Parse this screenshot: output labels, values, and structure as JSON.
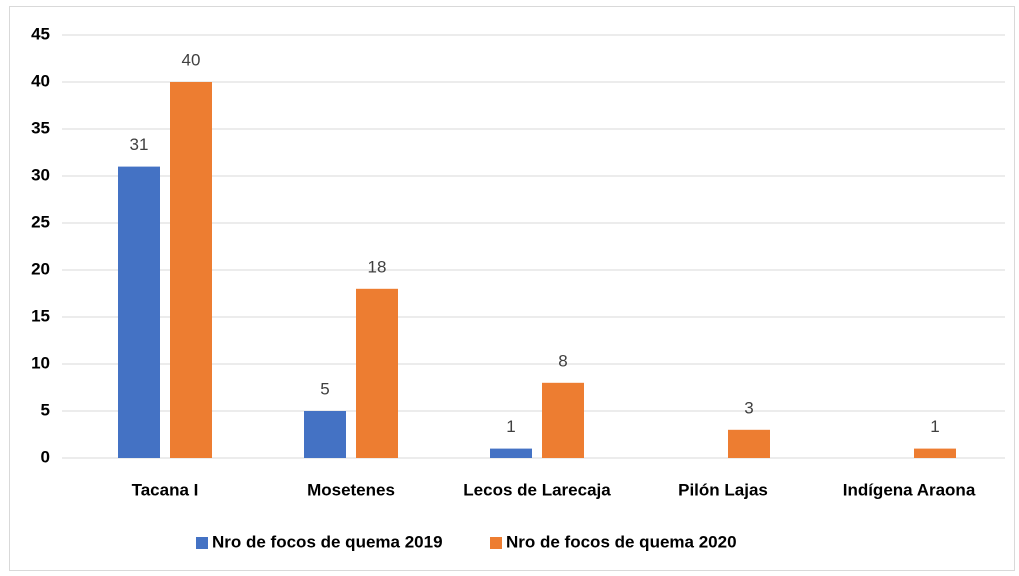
{
  "chart_data": {
    "type": "bar",
    "categories": [
      "Tacana I",
      "Mosetenes",
      "Lecos de Larecaja",
      "Pilón Lajas",
      "Indígena Araona"
    ],
    "series": [
      {
        "name": "Nro de focos de quema 2019",
        "color": "#4472c4",
        "values": [
          31,
          5,
          1,
          null,
          null
        ]
      },
      {
        "name": "Nro de focos de quema 2020",
        "color": "#ed7d31",
        "values": [
          40,
          18,
          8,
          3,
          1
        ]
      }
    ],
    "ylim": [
      0,
      45
    ],
    "yticks": [
      0,
      5,
      10,
      15,
      20,
      25,
      30,
      35,
      40,
      45
    ],
    "grid": true,
    "legend": "bottom"
  }
}
